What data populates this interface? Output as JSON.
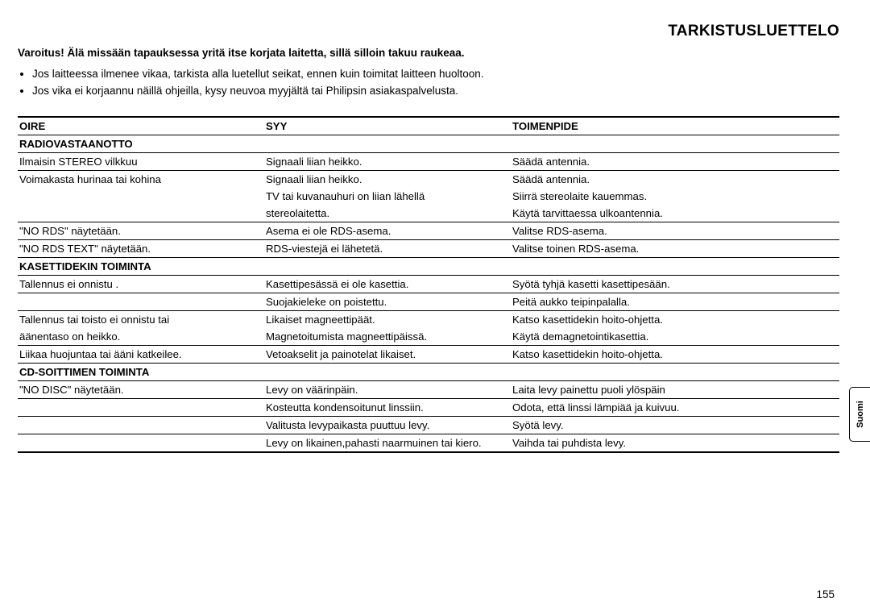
{
  "title": "TARKISTUSLUETTELO",
  "warning": "Varoitus! Älä missään tapauksessa yritä itse korjata laitetta, sillä silloin takuu raukeaa.",
  "bullets": [
    "Jos laitteessa ilmenee vikaa, tarkista alla luetellut seikat, ennen kuin toimitat laitteen huoltoon.",
    "Jos vika ei korjaannu näillä ohjeilla, kysy neuvoa myyjältä tai Philipsin asiakaspalvelusta."
  ],
  "headers": {
    "c1": "OIRE",
    "c2": "SYY",
    "c3": "TOIMENPIDE"
  },
  "sections": [
    {
      "name": "RADIOVASTAANOTTO",
      "rows": [
        {
          "c1": "Ilmaisin STEREO vilkkuu",
          "c2": "Signaali liian heikko.",
          "c3": "Säädä antennia.",
          "rule": true
        },
        {
          "c1": "Voimakasta hurinaa tai kohina",
          "c2": "Signaali liian heikko.",
          "c3": "Säädä antennia.",
          "rule": true
        },
        {
          "c1": "",
          "c2": "TV tai kuvanauhuri on liian lähellä",
          "c3": "Siirrä stereolaite kauemmas.",
          "rule": false
        },
        {
          "c1": "",
          "c2": "stereolaitetta.",
          "c3": "Käytä tarvittaessa ulkoantennia.",
          "rule": false
        },
        {
          "c1": "\"NO RDS\" näytetään.",
          "c2": "Asema ei ole RDS-asema.",
          "c3": "Valitse RDS-asema.",
          "rule": true
        },
        {
          "c1": "\"NO RDS TEXT\" näytetään.",
          "c2": "RDS-viestejä ei lähetetä.",
          "c3": "Valitse toinen RDS-asema.",
          "rule": true
        }
      ]
    },
    {
      "name": "KASETTIDEKIN TOIMINTA",
      "rows": [
        {
          "c1": "Tallennus ei onnistu .",
          "c2": "Kasettipesässä ei ole kasettia.",
          "c3": "Syötä tyhjä kasetti kasettipesään.",
          "rule": true
        },
        {
          "c1": "",
          "c2": "Suojakieleke on poistettu.",
          "c3": "Peitä aukko teipinpalalla.",
          "rule": true
        },
        {
          "c1": "Tallennus tai toisto ei onnistu tai",
          "c2": "Likaiset magneettipäät.",
          "c3": "Katso kasettidekin hoito-ohjetta.",
          "rule": true
        },
        {
          "c1": "äänentaso on heikko.",
          "c2": "Magnetoitumista magneettipäissä.",
          "c3": "Käytä demagnetointikasettia.",
          "rule": false
        },
        {
          "c1": "Liikaa huojuntaa tai ääni katkeilee.",
          "c2": "Vetoakselit ja painotelat likaiset.",
          "c3": "Katso kasettidekin hoito-ohjetta.",
          "rule": true
        }
      ]
    },
    {
      "name": "CD-SOITTIMEN TOIMINTA",
      "rows": [
        {
          "c1": "\"NO DISC\" näytetään.",
          "c2": "Levy on väärinpäin.",
          "c3": "Laita levy painettu puoli ylöspäin",
          "rule": true
        },
        {
          "c1": "",
          "c2": "Kosteutta kondensoitunut linssiin.",
          "c3": "Odota, että linssi lämpiää ja kuivuu.",
          "rule": true
        },
        {
          "c1": "",
          "c2": "Valitusta levypaikasta puuttuu levy.",
          "c3": "Syötä levy.",
          "rule": true
        },
        {
          "c1": "",
          "c2": "Levy on likainen,pahasti naarmuinen tai kiero.",
          "c3": "Vaihda tai puhdista levy.",
          "rule": true
        }
      ]
    }
  ],
  "sideTab": "Suomi",
  "pageNumber": "155"
}
